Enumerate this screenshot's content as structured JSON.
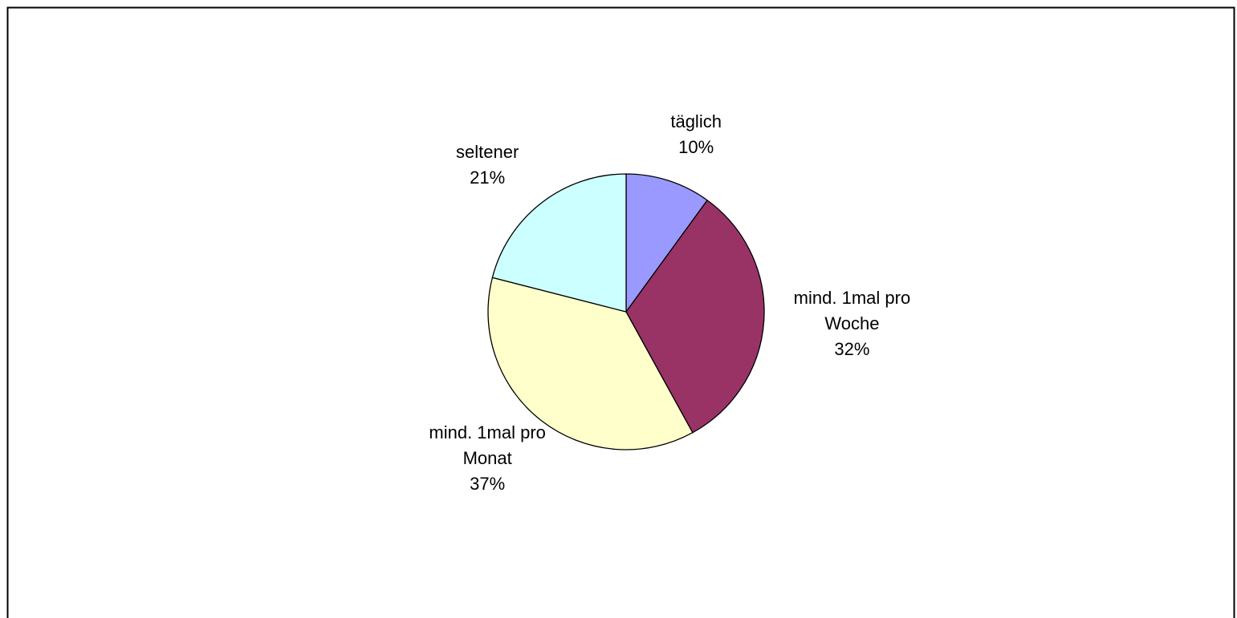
{
  "chart_data": {
    "type": "pie",
    "categories": [
      "täglich",
      "mind. 1mal pro Woche",
      "mind. 1mal pro Monat",
      "seltener"
    ],
    "values": [
      10,
      32,
      37,
      21
    ],
    "value_labels": [
      "10%",
      "32%",
      "37%",
      "21%"
    ],
    "colors": [
      "#9999ff",
      "#993366",
      "#ffffcc",
      "#ccffff"
    ]
  }
}
